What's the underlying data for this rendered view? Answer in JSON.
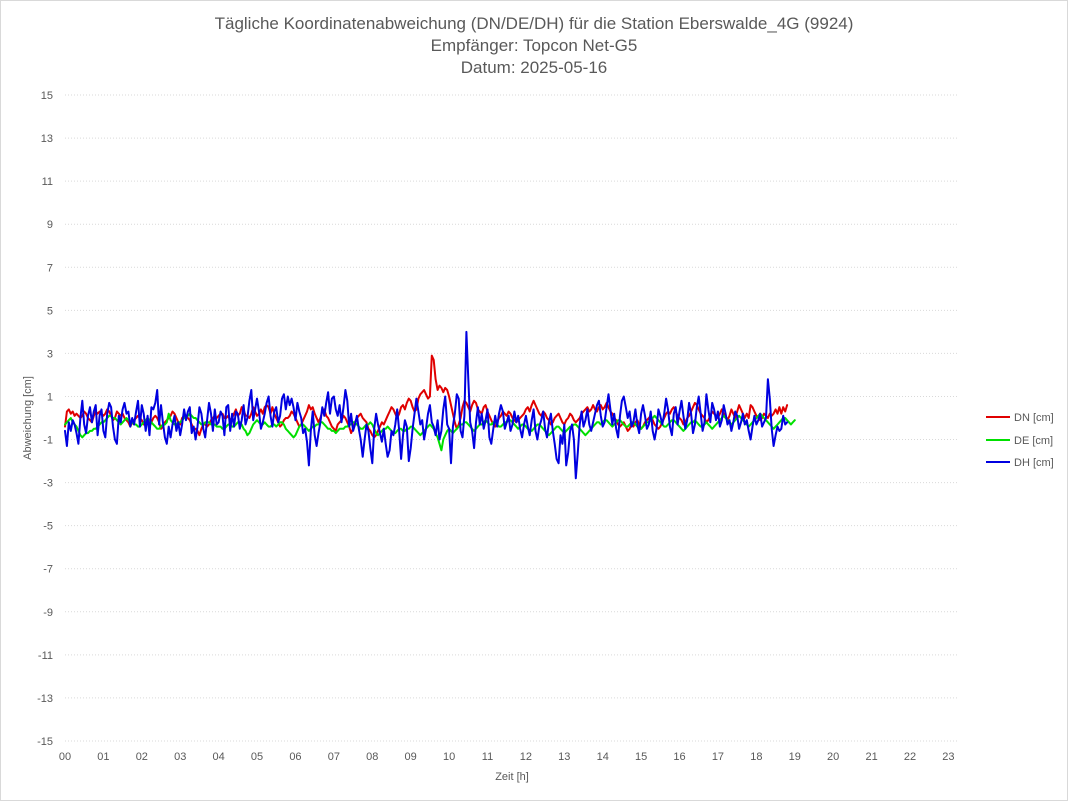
{
  "chart_data": {
    "type": "line",
    "title": "Tägliche Koordinatenabweichung (DN/DE/DH) für die Station Eberswalde_4G (9924)",
    "subtitle_lines": [
      "Empfänger: Topcon Net-G5",
      "Datum: 2025-05-16"
    ],
    "xlabel": "Zeit [h]",
    "ylabel": "Abweichung [cm]",
    "xlim": [
      0,
      23.25
    ],
    "ylim": [
      -15,
      15
    ],
    "x_ticks": [
      "00",
      "01",
      "02",
      "03",
      "04",
      "05",
      "06",
      "07",
      "08",
      "09",
      "10",
      "11",
      "12",
      "13",
      "14",
      "15",
      "16",
      "17",
      "18",
      "19",
      "20",
      "21",
      "22",
      "23"
    ],
    "y_ticks": [
      15,
      13,
      11,
      9,
      7,
      5,
      3,
      1,
      -1,
      -3,
      -5,
      -7,
      -9,
      -11,
      -13,
      -15
    ],
    "grid": "horizontal-dotted",
    "legend_position": "right",
    "x_step_hours": 0.05,
    "series": [
      {
        "name": "DN [cm]",
        "color": "#e00000",
        "values": [
          -0.4,
          0.3,
          0.4,
          0.2,
          0.3,
          0.1,
          0.2,
          0.1,
          0.0,
          0.1,
          0.3,
          0.2,
          0.0,
          -0.1,
          -0.2,
          0.1,
          0.3,
          0.2,
          0.3,
          0.2,
          0.1,
          0.2,
          0.4,
          0.3,
          0.1,
          -0.1,
          0.0,
          0.3,
          0.2,
          0.1,
          0.2,
          0.0,
          -0.1,
          -0.2,
          -0.4,
          -0.2,
          -0.1,
          0.0,
          0.1,
          0.0,
          -0.1,
          -0.3,
          -0.2,
          0.0,
          -0.4,
          -0.2,
          0.0,
          0.1,
          0.0,
          -0.2,
          -0.5,
          -0.4,
          -0.2,
          -0.1,
          0.0,
          0.1,
          0.3,
          0.2,
          0.0,
          -0.2,
          -0.3,
          0.0,
          0.1,
          0.1,
          0.0,
          -0.1,
          -0.3,
          -0.5,
          -0.5,
          -0.6,
          -0.8,
          -0.5,
          -0.3,
          -0.3,
          -0.4,
          -0.3,
          -0.1,
          0.0,
          0.1,
          0.0,
          0.1,
          0.2,
          0.2,
          0.0,
          0.0,
          0.1,
          -0.1,
          0.0,
          0.2,
          0.4,
          0.1,
          0.2,
          0.5,
          0.4,
          0.1,
          0.1,
          0.0,
          0.2,
          0.5,
          0.3,
          0.1,
          0.2,
          0.4,
          0.2,
          0.5,
          0.6,
          0.5,
          0.2,
          0.5,
          0.2,
          0.0,
          -0.2,
          -0.4,
          -0.3,
          -0.1,
          0.0,
          0.0,
          0.1,
          0.3,
          0.2,
          0.0,
          -0.2,
          -0.4,
          -0.3,
          -0.1,
          0.1,
          0.3,
          0.6,
          0.4,
          0.5,
          0.2,
          0.0,
          -0.2,
          0.0,
          0.3,
          0.4,
          0.1,
          0.0,
          -0.2,
          -0.4,
          -0.5,
          -0.6,
          -0.3,
          -0.2,
          -0.1,
          0.1,
          0.0,
          -0.2,
          -0.4,
          -0.7,
          -0.5,
          -0.2,
          0.0,
          0.1,
          0.2,
          0.0,
          -0.1,
          -0.2,
          -0.5,
          -0.6,
          -0.8,
          -0.9,
          -0.8,
          -0.6,
          -0.4,
          -0.2,
          -0.3,
          -0.1,
          0.1,
          0.3,
          0.5,
          0.4,
          0.2,
          0.0,
          0.2,
          0.5,
          0.6,
          0.4,
          0.7,
          0.9,
          0.8,
          0.5,
          0.3,
          0.4,
          0.9,
          1.1,
          1.2,
          1.3,
          1.1,
          0.9,
          1.0,
          2.9,
          2.7,
          1.8,
          1.3,
          1.5,
          1.4,
          1.2,
          1.4,
          1.3,
          1.0,
          0.6,
          0.2,
          -0.2,
          -0.5,
          -0.3,
          0.0,
          0.5,
          0.8,
          0.7,
          0.5,
          0.3,
          0.6,
          0.8,
          0.7,
          0.4,
          0.3,
          0.2,
          0.5,
          0.6,
          0.3,
          0.1,
          -0.1,
          -0.3,
          -0.4,
          -0.2,
          0.0,
          0.1,
          0.3,
          0.2,
          0.1,
          0.3,
          0.2,
          0.0,
          -0.1,
          -0.2,
          -0.1,
          0.0,
          0.1,
          0.2,
          0.4,
          0.5,
          0.3,
          0.6,
          0.8,
          0.6,
          0.4,
          0.2,
          0.1,
          0.3,
          0.2,
          0.0,
          -0.1,
          -0.3,
          -0.2,
          0.0,
          0.1,
          0.2,
          0.0,
          -0.2,
          -0.3,
          -0.1,
          0.0,
          0.2,
          0.1,
          -0.1,
          -0.2,
          -0.1,
          0.0,
          0.2,
          0.3,
          0.4,
          0.5,
          0.3,
          0.4,
          0.6,
          0.4,
          0.3,
          0.5,
          0.6,
          0.4,
          0.5,
          0.7,
          0.5,
          0.3,
          0.2,
          0.0,
          -0.1,
          -0.3,
          -0.4,
          -0.3,
          -0.2,
          -0.4,
          -0.6,
          -0.5,
          -0.3,
          -0.4,
          -0.2,
          -0.1,
          -0.3,
          -0.5,
          -0.4,
          -0.2,
          -0.1,
          0.0,
          0.1,
          -0.1,
          -0.3,
          -0.4,
          -0.5,
          -0.4,
          -0.2,
          0.0,
          0.2,
          0.3,
          0.2,
          0.4,
          0.5,
          0.3,
          0.1,
          0.0,
          -0.1,
          -0.3,
          -0.2,
          0.0,
          0.1,
          0.3,
          0.5,
          0.7,
          0.6,
          0.4,
          0.2,
          0.1,
          0.0,
          -0.2,
          -0.1,
          0.1,
          0.3,
          0.2,
          0.1,
          0.0,
          0.2,
          0.4,
          0.2,
          0.1,
          -0.1,
          0.1,
          0.4,
          0.2,
          0.0,
          0.3,
          0.6,
          0.4,
          0.2,
          0.0,
          0.2,
          0.0,
          0.6,
          0.5,
          0.3,
          0.1,
          0.0,
          -0.1,
          0.0,
          0.2,
          0.1,
          0.0,
          0.2,
          0.1,
          0.2,
          0.4,
          0.2,
          0.5,
          0.2,
          0.5,
          0.3,
          0.6
        ]
      },
      {
        "name": "DE [cm]",
        "color": "#00e000",
        "values": [
          -0.3,
          -0.2,
          -0.1,
          0.0,
          -0.2,
          -0.3,
          -0.4,
          -0.6,
          -0.8,
          -0.9,
          -0.8,
          -0.7,
          -0.7,
          -0.6,
          -0.6,
          -0.5,
          -0.5,
          -0.4,
          -0.3,
          -0.2,
          -0.2,
          -0.1,
          0.0,
          0.1,
          0.1,
          0.0,
          0.0,
          -0.1,
          -0.2,
          -0.3,
          -0.2,
          -0.1,
          0.0,
          -0.1,
          -0.2,
          -0.2,
          -0.3,
          -0.3,
          -0.4,
          -0.4,
          -0.3,
          -0.2,
          -0.1,
          0.0,
          -0.1,
          -0.2,
          -0.3,
          -0.4,
          -0.5,
          -0.5,
          -0.4,
          -0.3,
          -0.3,
          -0.2,
          0.2,
          -0.1,
          -0.2,
          -0.3,
          -0.3,
          -0.2,
          -0.2,
          -0.1,
          0.0,
          0.1,
          0.1,
          0.2,
          0.1,
          0.0,
          0.0,
          -0.1,
          -0.2,
          -0.3,
          -0.3,
          -0.2,
          -0.2,
          -0.2,
          -0.3,
          -0.3,
          -0.3,
          -0.4,
          -0.4,
          -0.4,
          -0.5,
          -0.5,
          -0.4,
          -0.3,
          -0.3,
          -0.4,
          -0.4,
          -0.3,
          -0.2,
          -0.2,
          -0.3,
          -0.5,
          -0.6,
          -0.8,
          -0.7,
          -0.5,
          -0.3,
          -0.2,
          -0.1,
          -0.2,
          -0.3,
          -0.3,
          -0.2,
          -0.3,
          -0.4,
          -0.4,
          -0.3,
          -0.3,
          -0.4,
          -0.3,
          -0.2,
          -0.2,
          -0.3,
          -0.5,
          -0.6,
          -0.7,
          -0.8,
          -0.9,
          -0.8,
          -0.6,
          -0.4,
          -0.3,
          -0.3,
          -0.4,
          -0.5,
          -0.6,
          -0.5,
          -0.4,
          -0.4,
          -0.3,
          -0.3,
          -0.2,
          -0.2,
          -0.3,
          -0.4,
          -0.5,
          -0.5,
          -0.6,
          -0.6,
          -0.7,
          -0.6,
          -0.5,
          -0.5,
          -0.5,
          -0.4,
          -0.4,
          -0.3,
          -0.3,
          -0.2,
          -0.2,
          -0.3,
          -0.4,
          -0.5,
          -0.5,
          -0.4,
          -0.3,
          -0.3,
          -0.2,
          -0.3,
          -0.5,
          -0.7,
          -0.8,
          -0.7,
          -0.6,
          -0.5,
          -0.5,
          -0.4,
          -0.5,
          -0.6,
          -0.7,
          -0.7,
          -0.6,
          -0.5,
          -0.5,
          -0.6,
          -0.6,
          -0.5,
          -0.5,
          -0.4,
          -0.4,
          -0.5,
          -0.6,
          -0.7,
          -0.8,
          -0.7,
          -0.6,
          -0.5,
          -0.4,
          -0.3,
          -0.4,
          -0.5,
          -0.7,
          -0.9,
          -1.2,
          -1.5,
          -1.0,
          -0.8,
          -0.6,
          -0.5,
          -0.6,
          -0.7,
          -0.6,
          -0.5,
          -0.4,
          -0.3,
          -0.3,
          -0.2,
          -0.2,
          -0.3,
          -0.4,
          -0.5,
          -0.6,
          -0.5,
          -0.4,
          -0.3,
          -0.3,
          -0.2,
          -0.1,
          -0.2,
          -0.3,
          -0.3,
          -0.2,
          -0.2,
          -0.3,
          -0.4,
          -0.4,
          -0.3,
          -0.2,
          -0.2,
          -0.1,
          -0.1,
          -0.2,
          -0.3,
          -0.4,
          -0.5,
          -0.4,
          -0.3,
          -0.3,
          -0.4,
          -0.5,
          -0.6,
          -0.6,
          -0.5,
          -0.4,
          -0.3,
          -0.3,
          -0.4,
          -0.5,
          -0.6,
          -0.7,
          -0.8,
          -0.7,
          -0.6,
          -0.5,
          -0.4,
          -0.4,
          -0.5,
          -0.6,
          -0.7,
          -0.6,
          -0.5,
          -0.4,
          -0.4,
          -0.3,
          -0.3,
          -0.4,
          -0.5,
          -0.6,
          -0.7,
          -0.8,
          -0.7,
          -0.6,
          -0.5,
          -0.4,
          -0.3,
          -0.2,
          -0.2,
          -0.3,
          -0.2,
          -0.1,
          -0.1,
          -0.2,
          -0.3,
          -0.4,
          -0.3,
          -0.2,
          -0.1,
          -0.1,
          -0.2,
          -0.3,
          -0.4,
          -0.4,
          -0.3,
          -0.2,
          -0.2,
          -0.3,
          -0.4,
          -0.5,
          -0.5,
          -0.4,
          -0.3,
          -0.2,
          -0.2,
          -0.1,
          0.0,
          0.1,
          0.0,
          -0.1,
          -0.2,
          -0.3,
          -0.4,
          -0.4,
          -0.3,
          -0.2,
          -0.1,
          -0.1,
          -0.2,
          -0.3,
          -0.4,
          -0.5,
          -0.6,
          -0.5,
          -0.4,
          -0.3,
          -0.2,
          -0.2,
          -0.1,
          -0.2,
          -0.3,
          -0.4,
          -0.4,
          -0.3,
          -0.2,
          -0.3,
          -0.4,
          -0.5,
          -0.4,
          -0.3,
          -0.2,
          -0.1,
          0.0,
          0.1,
          0.0,
          -0.1,
          -0.2,
          -0.3,
          -0.2,
          -0.1,
          0.0,
          0.1,
          0.0,
          -0.1,
          -0.2,
          -0.3,
          -0.4,
          -0.3,
          -0.2,
          -0.1,
          0.0,
          0.1,
          0.2,
          0.1,
          0.0,
          -0.1,
          -0.2,
          -0.3,
          -0.4,
          -0.5,
          -0.4,
          -0.3,
          -0.2,
          -0.1,
          0.0,
          0.0,
          -0.1,
          -0.2,
          -0.3,
          -0.2,
          -0.1
        ]
      },
      {
        "name": "DH [cm]",
        "color": "#0000e0",
        "values": [
          -0.6,
          -1.3,
          -0.2,
          -0.6,
          -0.1,
          -0.3,
          -0.7,
          -1.2,
          0.0,
          0.8,
          -0.3,
          -0.7,
          0.1,
          0.5,
          -0.2,
          0.3,
          0.6,
          -0.8,
          0.1,
          0.4,
          -0.6,
          -0.9,
          0.2,
          0.7,
          0.5,
          -0.4,
          -1.0,
          -1.2,
          0.1,
          -0.2,
          0.4,
          0.7,
          0.2,
          0.3,
          -0.4,
          0.0,
          -0.3,
          0.3,
          0.8,
          -0.4,
          0.6,
          0.2,
          -0.6,
          0.1,
          -0.8,
          0.5,
          0.4,
          0.7,
          1.3,
          -0.3,
          0.6,
          -0.2,
          -0.9,
          -1.2,
          -0.4,
          -0.9,
          -0.3,
          0.1,
          -0.6,
          -0.2,
          -0.8,
          -0.3,
          0.4,
          -0.1,
          0.3,
          0.5,
          -0.7,
          -0.4,
          -1.0,
          -0.4,
          0.5,
          0.2,
          -0.5,
          -0.9,
          -0.1,
          0.7,
          0.2,
          -0.6,
          0.4,
          -0.3,
          -0.2,
          0.3,
          0.1,
          -0.8,
          0.5,
          0.6,
          -0.6,
          0.2,
          -0.4,
          0.3,
          0.2,
          -0.5,
          -0.1,
          0.6,
          -0.3,
          0.0,
          0.8,
          1.3,
          -0.1,
          0.4,
          0.9,
          0.3,
          -0.5,
          -0.2,
          0.2,
          0.7,
          1.0,
          0.1,
          -0.4,
          0.3,
          0.5,
          -0.2,
          0.1,
          0.9,
          1.1,
          0.4,
          1.0,
          0.6,
          0.9,
          0.5,
          -0.1,
          0.7,
          0.3,
          0.0,
          -0.7,
          -0.5,
          -1.1,
          -2.2,
          -0.6,
          0.3,
          -0.8,
          -1.3,
          -0.7,
          -0.2,
          0.5,
          0.1,
          0.7,
          1.2,
          0.2,
          0.9,
          1.0,
          0.4,
          0.1,
          0.6,
          -0.2,
          0.5,
          1.3,
          0.8,
          -0.4,
          0.2,
          -0.6,
          -0.3,
          0.1,
          -0.5,
          -1.0,
          -1.8,
          -1.0,
          -0.3,
          -0.6,
          -1.4,
          -2.1,
          -0.5,
          0.2,
          -0.3,
          -0.7,
          -1.1,
          -0.5,
          -1.2,
          -1.8,
          -1.5,
          -0.6,
          -0.8,
          -0.3,
          0.4,
          -0.6,
          -1.9,
          -0.8,
          -0.1,
          -0.4,
          -2.0,
          -1.4,
          -0.5,
          0.2,
          0.9,
          0.3,
          -0.3,
          -0.1,
          -1.0,
          -0.5,
          0.2,
          0.6,
          -0.2,
          -0.4,
          -0.8,
          -0.1,
          -1.0,
          -0.6,
          0.4,
          1.0,
          -0.3,
          -0.5,
          -2.1,
          -0.4,
          0.2,
          1.1,
          0.9,
          -0.6,
          -0.9,
          0.1,
          4.0,
          1.8,
          -0.2,
          -0.6,
          -1.4,
          -0.2,
          0.5,
          -0.3,
          0.2,
          -0.5,
          -0.1,
          0.4,
          -0.9,
          -1.2,
          -0.5,
          0.1,
          -0.4,
          0.2,
          0.6,
          0.3,
          -0.5,
          -0.2,
          0.1,
          -0.6,
          -0.3,
          0.3,
          -0.2,
          0.1,
          -0.5,
          -0.9,
          -0.3,
          0.1,
          -0.4,
          -0.8,
          -0.1,
          0.4,
          -0.6,
          -1.0,
          -0.4,
          -0.1,
          0.3,
          -0.5,
          -0.9,
          -0.2,
          0.2,
          -0.6,
          -1.2,
          -1.9,
          -2.1,
          -0.8,
          -1.2,
          -0.3,
          -2.2,
          -1.6,
          -0.6,
          -0.3,
          -1.0,
          -2.8,
          -1.6,
          -0.3,
          0.3,
          -0.4,
          -0.1,
          0.4,
          -0.3,
          -0.6,
          -0.2,
          0.2,
          0.6,
          0.8,
          0.1,
          -0.4,
          -0.2,
          0.5,
          1.1,
          0.4,
          -0.3,
          0.2,
          -0.5,
          -0.9,
          0.1,
          0.8,
          1.0,
          0.5,
          0.0,
          0.3,
          -0.4,
          -0.2,
          0.4,
          -0.3,
          -0.7,
          0.2,
          0.6,
          0.1,
          -0.5,
          -0.3,
          0.3,
          -0.6,
          -1.0,
          -0.5,
          0.4,
          0.1,
          -0.3,
          0.2,
          0.9,
          0.4,
          -0.4,
          -0.8,
          0.2,
          0.5,
          -0.3,
          0.3,
          0.8,
          0.1,
          -0.5,
          -0.1,
          0.7,
          0.2,
          -0.7,
          -0.3,
          0.5,
          1.0,
          0.2,
          -0.6,
          -0.2,
          1.1,
          0.4,
          -0.2,
          0.7,
          0.4,
          -0.1,
          0.3,
          -0.4,
          -0.1,
          0.6,
          0.2,
          -0.3,
          -0.1,
          -0.6,
          -0.2,
          0.3,
          0.1,
          -0.5,
          -0.2,
          0.2,
          -0.3,
          -0.1,
          -0.6,
          -1.0,
          -0.4,
          0.1,
          -0.3,
          -0.1,
          0.2,
          -0.4,
          -0.2,
          0.0,
          1.8,
          0.9,
          -0.5,
          -1.3,
          -0.8,
          -0.4,
          -0.6,
          -0.5,
          0.1,
          -0.3,
          -0.2
        ]
      }
    ]
  }
}
